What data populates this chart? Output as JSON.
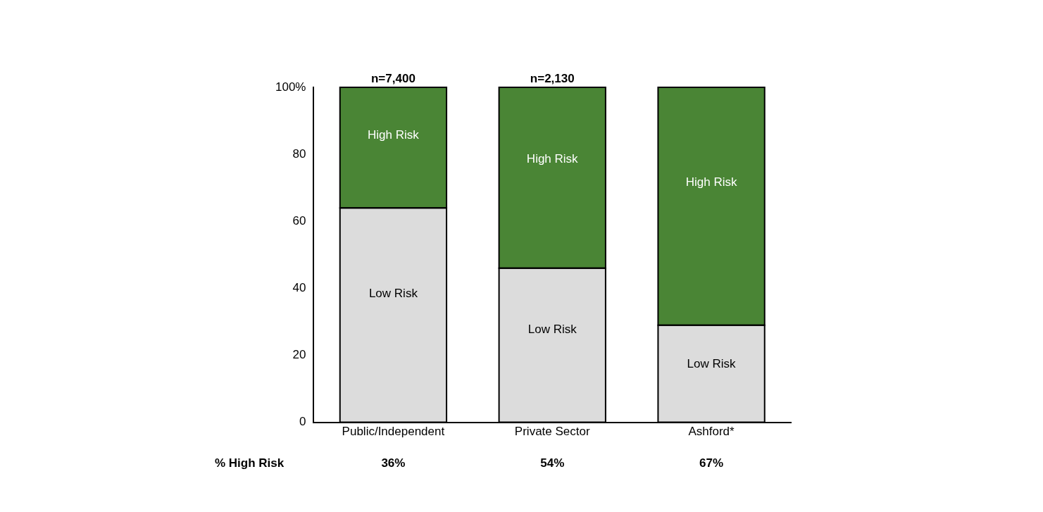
{
  "chart_data": {
    "type": "bar",
    "stacked": true,
    "categories": [
      "Public/Independent",
      "Private Sector",
      "Ashford*"
    ],
    "series": [
      {
        "name": "Low Risk",
        "color": "#dcdcdc",
        "values": [
          64,
          46,
          29
        ]
      },
      {
        "name": "High Risk",
        "color": "#4a8535",
        "values": [
          36,
          54,
          71
        ]
      }
    ],
    "ylim": [
      0,
      100
    ],
    "yticks": [
      0,
      20,
      40,
      60,
      80,
      {
        "value": 100,
        "label": "100%"
      }
    ],
    "grid": false,
    "legend": false,
    "annotations": [
      "% High Risk",
      "36%",
      "54%",
      "67%",
      "n=7,400",
      "n=2,130"
    ]
  }
}
